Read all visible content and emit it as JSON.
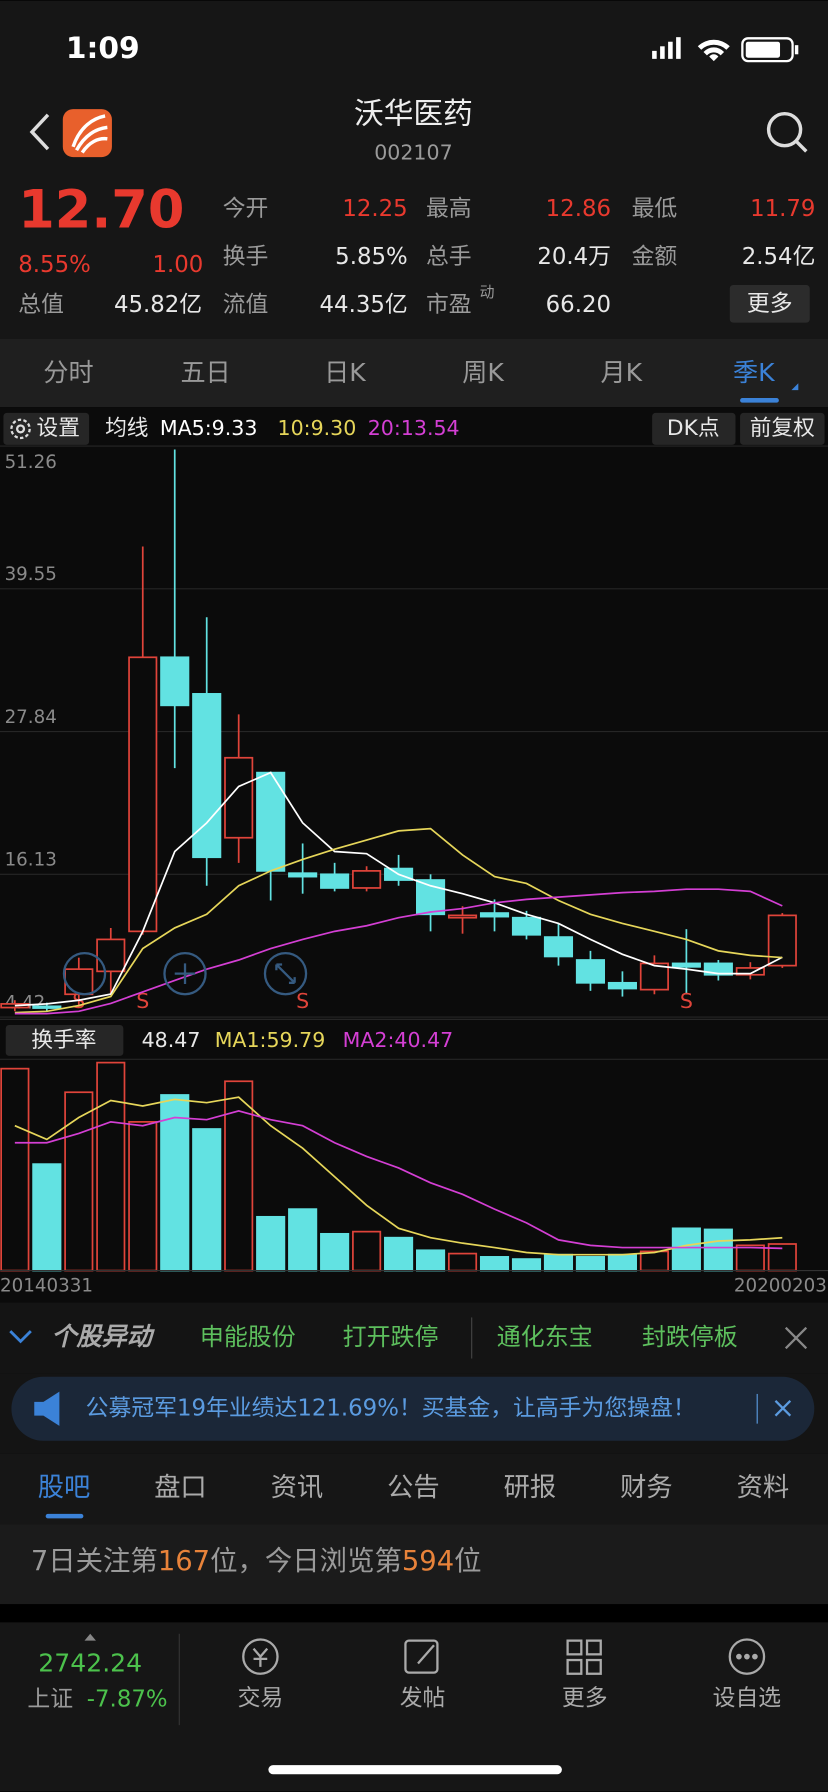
{
  "status_bar": {
    "time": "1:09"
  },
  "header": {
    "title": "沃华医药",
    "code": "002107"
  },
  "quote": {
    "price": "12.70",
    "change_pct": "8.55%",
    "change": "1.00",
    "fields": [
      {
        "label": "今开",
        "value": "12.25"
      },
      {
        "label": "最高",
        "value": "12.86"
      },
      {
        "label": "最低",
        "value": "11.79"
      },
      {
        "label": "换手",
        "value": "5.85%"
      },
      {
        "label": "总手",
        "value": "20.4万"
      },
      {
        "label": "金额",
        "value": "2.54亿"
      },
      {
        "label": "总值",
        "value": "45.82亿"
      },
      {
        "label": "流值",
        "value": "44.35亿"
      },
      {
        "label": "市盈",
        "value": "66.20"
      }
    ],
    "pe_superscript": "动",
    "more": "更多"
  },
  "period_tabs": [
    "分时",
    "五日",
    "日K",
    "周K",
    "月K",
    "季K"
  ],
  "chart_data": [
    {
      "type": "candlestick",
      "settings": "设置",
      "ma_title": "均线",
      "ma_labels": [
        "MA5:9.33",
        "10:9.30",
        "20:13.54"
      ],
      "buttons": [
        "DK点",
        "前复权"
      ],
      "up_color": "#e0443a",
      "down_color": "#62e2e2",
      "open": [
        5.2,
        5.3,
        6.29,
        8.17,
        11.45,
        33.93,
        30.93,
        19.13,
        24.47,
        16.22,
        16.13,
        15.01,
        16.6,
        15.66,
        12.57,
        12.95,
        12.57,
        10.98,
        9.1,
        7.23,
        6.67,
        8.82,
        8.82,
        7.89,
        8.64
      ],
      "high": [
        5.8,
        5.6,
        9.29,
        11.73,
        43.02,
        50.98,
        37.21,
        29.25,
        24.56,
        18.66,
        17.07,
        16.79,
        17.72,
        16.13,
        13.51,
        14.07,
        13.13,
        12.1,
        9.85,
        8.17,
        9.48,
        11.63,
        9.1,
        8.92,
        12.95
      ],
      "low": [
        4.9,
        4.9,
        5.17,
        6.29,
        11.17,
        24.84,
        15.19,
        17.07,
        13.98,
        14.54,
        14.73,
        14.73,
        15.19,
        11.45,
        11.26,
        11.45,
        10.79,
        8.64,
        6.57,
        6.1,
        6.29,
        6.29,
        7.42,
        7.51,
        8.45
      ],
      "close": [
        5.5,
        5.2,
        8.35,
        10.79,
        33.93,
        29.99,
        17.53,
        25.69,
        16.41,
        15.94,
        15.01,
        16.41,
        15.66,
        12.85,
        12.76,
        12.66,
        11.17,
        9.39,
        7.23,
        6.76,
        8.82,
        8.54,
        7.89,
        8.45,
        12.76
      ],
      "signals": [
        null,
        null,
        "S",
        null,
        "S",
        null,
        null,
        null,
        null,
        "S",
        null,
        null,
        null,
        null,
        null,
        null,
        null,
        null,
        null,
        null,
        null,
        "S",
        null,
        null,
        null
      ],
      "series": [
        {
          "color": "#ffffff",
          "values": [
            5.36,
            5.5,
            5.8,
            6.3,
            11.45,
            18.0,
            20.35,
            23.34,
            24.47,
            20.35,
            18.0,
            17.82,
            16.13,
            15.19,
            14.54,
            13.79,
            12.85,
            12.1,
            10.79,
            9.57,
            8.64,
            8.35,
            7.98,
            7.98,
            9.33
          ]
        },
        {
          "color": "#e6d65a",
          "values": [
            4.79,
            4.89,
            5.36,
            6.11,
            10.04,
            11.73,
            12.85,
            15.19,
            16.41,
            17.35,
            18.19,
            18.94,
            19.69,
            19.88,
            17.72,
            15.94,
            15.38,
            13.98,
            12.85,
            12.1,
            11.45,
            10.79,
            9.85,
            9.48,
            9.3
          ]
        },
        {
          "color": "#d43fd4",
          "values": [
            4.7,
            4.7,
            4.89,
            5.54,
            6.48,
            7.42,
            8.35,
            9.1,
            10.04,
            10.79,
            11.45,
            11.91,
            12.57,
            13.04,
            13.32,
            13.79,
            14.07,
            14.26,
            14.44,
            14.63,
            14.73,
            14.91,
            14.91,
            14.73,
            13.54
          ]
        }
      ],
      "ylim": [
        4.42,
        51.26
      ],
      "yticks": [
        51.26,
        39.55,
        27.84,
        16.13,
        4.42
      ],
      "grid": true
    },
    {
      "type": "bar",
      "title": "换手率",
      "ma_labels": [
        "MA1:59.79",
        "MA2:40.47"
      ],
      "categories": [
        "20140331",
        null,
        null,
        null,
        null,
        null,
        null,
        null,
        null,
        null,
        null,
        null,
        null,
        null,
        null,
        null,
        null,
        null,
        null,
        null,
        null,
        null,
        null,
        null,
        "20200203"
      ],
      "values": [
        368,
        194,
        325,
        379,
        271,
        320,
        258,
        345,
        98,
        112,
        67,
        71,
        60,
        37,
        31,
        25,
        21,
        29,
        25,
        29,
        35,
        77,
        75,
        46,
        48.47
      ],
      "series": [
        {
          "color": "#e6d65a",
          "values": [
            264,
            239,
            279,
            310,
            300,
            312,
            306,
            316,
            264,
            223,
            171,
            119,
            77,
            60,
            50,
            42,
            33,
            29,
            29,
            29,
            33,
            46,
            54,
            56,
            59.79
          ]
        },
        {
          "color": "#d43fd4",
          "values": [
            233,
            233,
            250,
            271,
            264,
            279,
            275,
            291,
            275,
            264,
            233,
            208,
            187,
            160,
            139,
            112,
            87,
            56,
            46,
            42,
            42,
            42,
            42,
            42,
            40.47
          ]
        }
      ],
      "ylim": [
        0,
        385
      ]
    }
  ],
  "ticker": {
    "title": "个股异动",
    "items": [
      "申能股份",
      "打开跌停",
      "通化东宝",
      "封跌停板"
    ]
  },
  "banner": {
    "text": "公募冠军19年业绩达121.69%！买基金，让高手为您操盘！"
  },
  "section_tabs": [
    "股吧",
    "盘口",
    "资讯",
    "公告",
    "研报",
    "财务",
    "资料"
  ],
  "rank_info": {
    "prefix": "7日关注第",
    "follow_rank": "167",
    "middle": "位，今日浏览第",
    "view_rank": "594",
    "suffix": "位"
  },
  "bottom_bar": {
    "index_value": "2742.24",
    "index_name": "上证",
    "index_change": "-7.87%",
    "items": [
      "交易",
      "发帖",
      "更多",
      "设自选"
    ]
  }
}
